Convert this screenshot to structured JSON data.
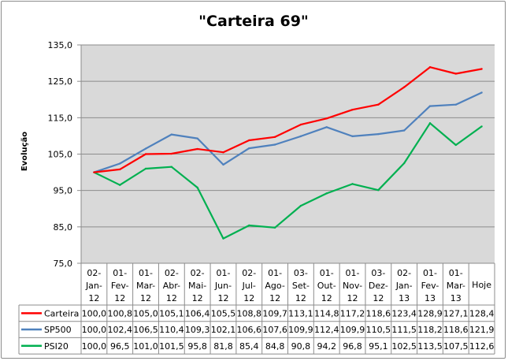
{
  "chart_data": {
    "type": "line",
    "title": "\"Carteira 69\"",
    "xlabel": "",
    "ylabel": "Evolução",
    "ylim": [
      75,
      135
    ],
    "yticks": [
      "75,0",
      "85,0",
      "95,0",
      "105,0",
      "115,0",
      "125,0",
      "135,0"
    ],
    "grid": true,
    "legend_placement": "data-table",
    "categories": [
      [
        "02-",
        "Jan-",
        "12"
      ],
      [
        "01-",
        "Fev-",
        "12"
      ],
      [
        "01-",
        "Mar-",
        "12"
      ],
      [
        "02-",
        "Abr-",
        "12"
      ],
      [
        "02-",
        "Mai-",
        "12"
      ],
      [
        "01-",
        "Jun-",
        "12"
      ],
      [
        "02-",
        "Jul-",
        "12"
      ],
      [
        "01-",
        "Ago-",
        "12"
      ],
      [
        "03-",
        "Set-",
        "12"
      ],
      [
        "01-",
        "Out-",
        "12"
      ],
      [
        "01-",
        "Nov-",
        "12"
      ],
      [
        "03-",
        "Dez-",
        "12"
      ],
      [
        "02-",
        "Jan-",
        "13"
      ],
      [
        "01-",
        "Fev-",
        "13"
      ],
      [
        "01-",
        "Mar-",
        "13"
      ],
      [
        "Hoje"
      ]
    ],
    "series": [
      {
        "name": "Carteira",
        "color": "#ff0000",
        "values": [
          100.0,
          100.8,
          105.0,
          105.1,
          106.4,
          105.5,
          108.8,
          109.7,
          113.1,
          114.8,
          117.2,
          118.6,
          123.4,
          128.9,
          127.1,
          128.4
        ],
        "labels": [
          "100,0",
          "100,8",
          "105,0",
          "105,1",
          "106,4",
          "105,5",
          "108,8",
          "109,7",
          "113,1",
          "114,8",
          "117,2",
          "118,6",
          "123,4",
          "128,9",
          "127,1",
          "128,4"
        ]
      },
      {
        "name": "SP500",
        "color": "#4f81bd",
        "values": [
          100.0,
          102.4,
          106.5,
          110.4,
          109.3,
          102.1,
          106.6,
          107.6,
          109.9,
          112.4,
          109.9,
          110.5,
          111.5,
          118.2,
          118.6,
          121.9
        ],
        "labels": [
          "100,0",
          "102,4",
          "106,5",
          "110,4",
          "109,3",
          "102,1",
          "106,6",
          "107,6",
          "109,9",
          "112,4",
          "109,9",
          "110,5",
          "111,5",
          "118,2",
          "118,6",
          "121,9"
        ]
      },
      {
        "name": "PSI20",
        "color": "#00b050",
        "values": [
          100.0,
          96.5,
          101.0,
          101.5,
          95.8,
          81.8,
          85.4,
          84.8,
          90.8,
          94.2,
          96.8,
          95.1,
          102.5,
          113.5,
          107.5,
          112.6
        ],
        "labels": [
          "100,0",
          "96,5",
          "101,0",
          "101,5",
          "95,8",
          "81,8",
          "85,4",
          "84,8",
          "90,8",
          "94,2",
          "96,8",
          "95,1",
          "102,5",
          "113,5",
          "107,5",
          "112,6"
        ]
      }
    ]
  }
}
